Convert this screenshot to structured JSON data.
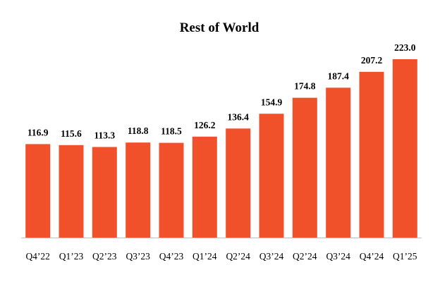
{
  "chart_data": {
    "type": "bar",
    "title": "Rest of World",
    "categories": [
      "Q4’22",
      "Q1’23",
      "Q2’23",
      "Q3’23",
      "Q4’23",
      "Q1’24",
      "Q2’24",
      "Q3’24",
      "Q2’24",
      "Q3’24",
      "Q4’24",
      "Q1’25"
    ],
    "values": [
      116.9,
      115.6,
      113.3,
      118.8,
      118.5,
      126.2,
      136.4,
      154.9,
      174.8,
      187.4,
      207.2,
      223.0
    ],
    "value_labels": [
      "116.9",
      "115.6",
      "113.3",
      "118.8",
      "118.5",
      "126.2",
      "136.4",
      "154.9",
      "174.8",
      "187.4",
      "207.2",
      "223.0"
    ],
    "ylim": [
      0,
      223.0
    ],
    "grid": false,
    "colors": {
      "bar": "#f0502a",
      "axis": "#bfbfbf"
    }
  }
}
